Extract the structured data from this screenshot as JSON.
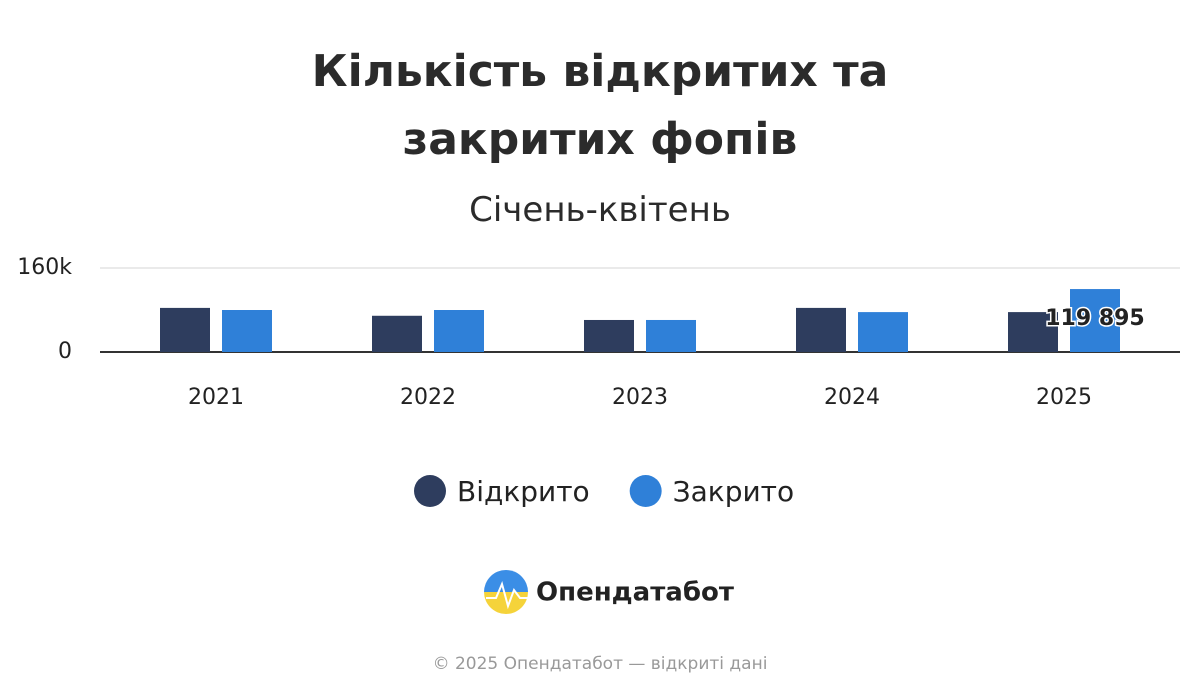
{
  "chart_data": {
    "type": "bar",
    "title": "Кількість відкритих та закритих фопів",
    "subtitle": "Січень-квітень",
    "categories": [
      "2021",
      "2022",
      "2023",
      "2024",
      "2025"
    ],
    "series": [
      {
        "name": "Відкрито",
        "color": "#2e3d5e",
        "values": [
          84000,
          69000,
          61000,
          84000,
          76000
        ]
      },
      {
        "name": "Закрито",
        "color": "#2f80d8",
        "values": [
          80000,
          80000,
          61000,
          76000,
          119895
        ],
        "value_labels": [
          null,
          null,
          null,
          null,
          "119 895"
        ]
      }
    ],
    "ylim": [
      0,
      160000
    ],
    "yticks": [
      0,
      {
        "value": 160000,
        "label": "160k"
      }
    ],
    "grid": true,
    "legend": "bottom"
  },
  "footer": {
    "brand": "Опендатабот",
    "copyright": "© 2025 Опендатабот — відкриті дані"
  }
}
